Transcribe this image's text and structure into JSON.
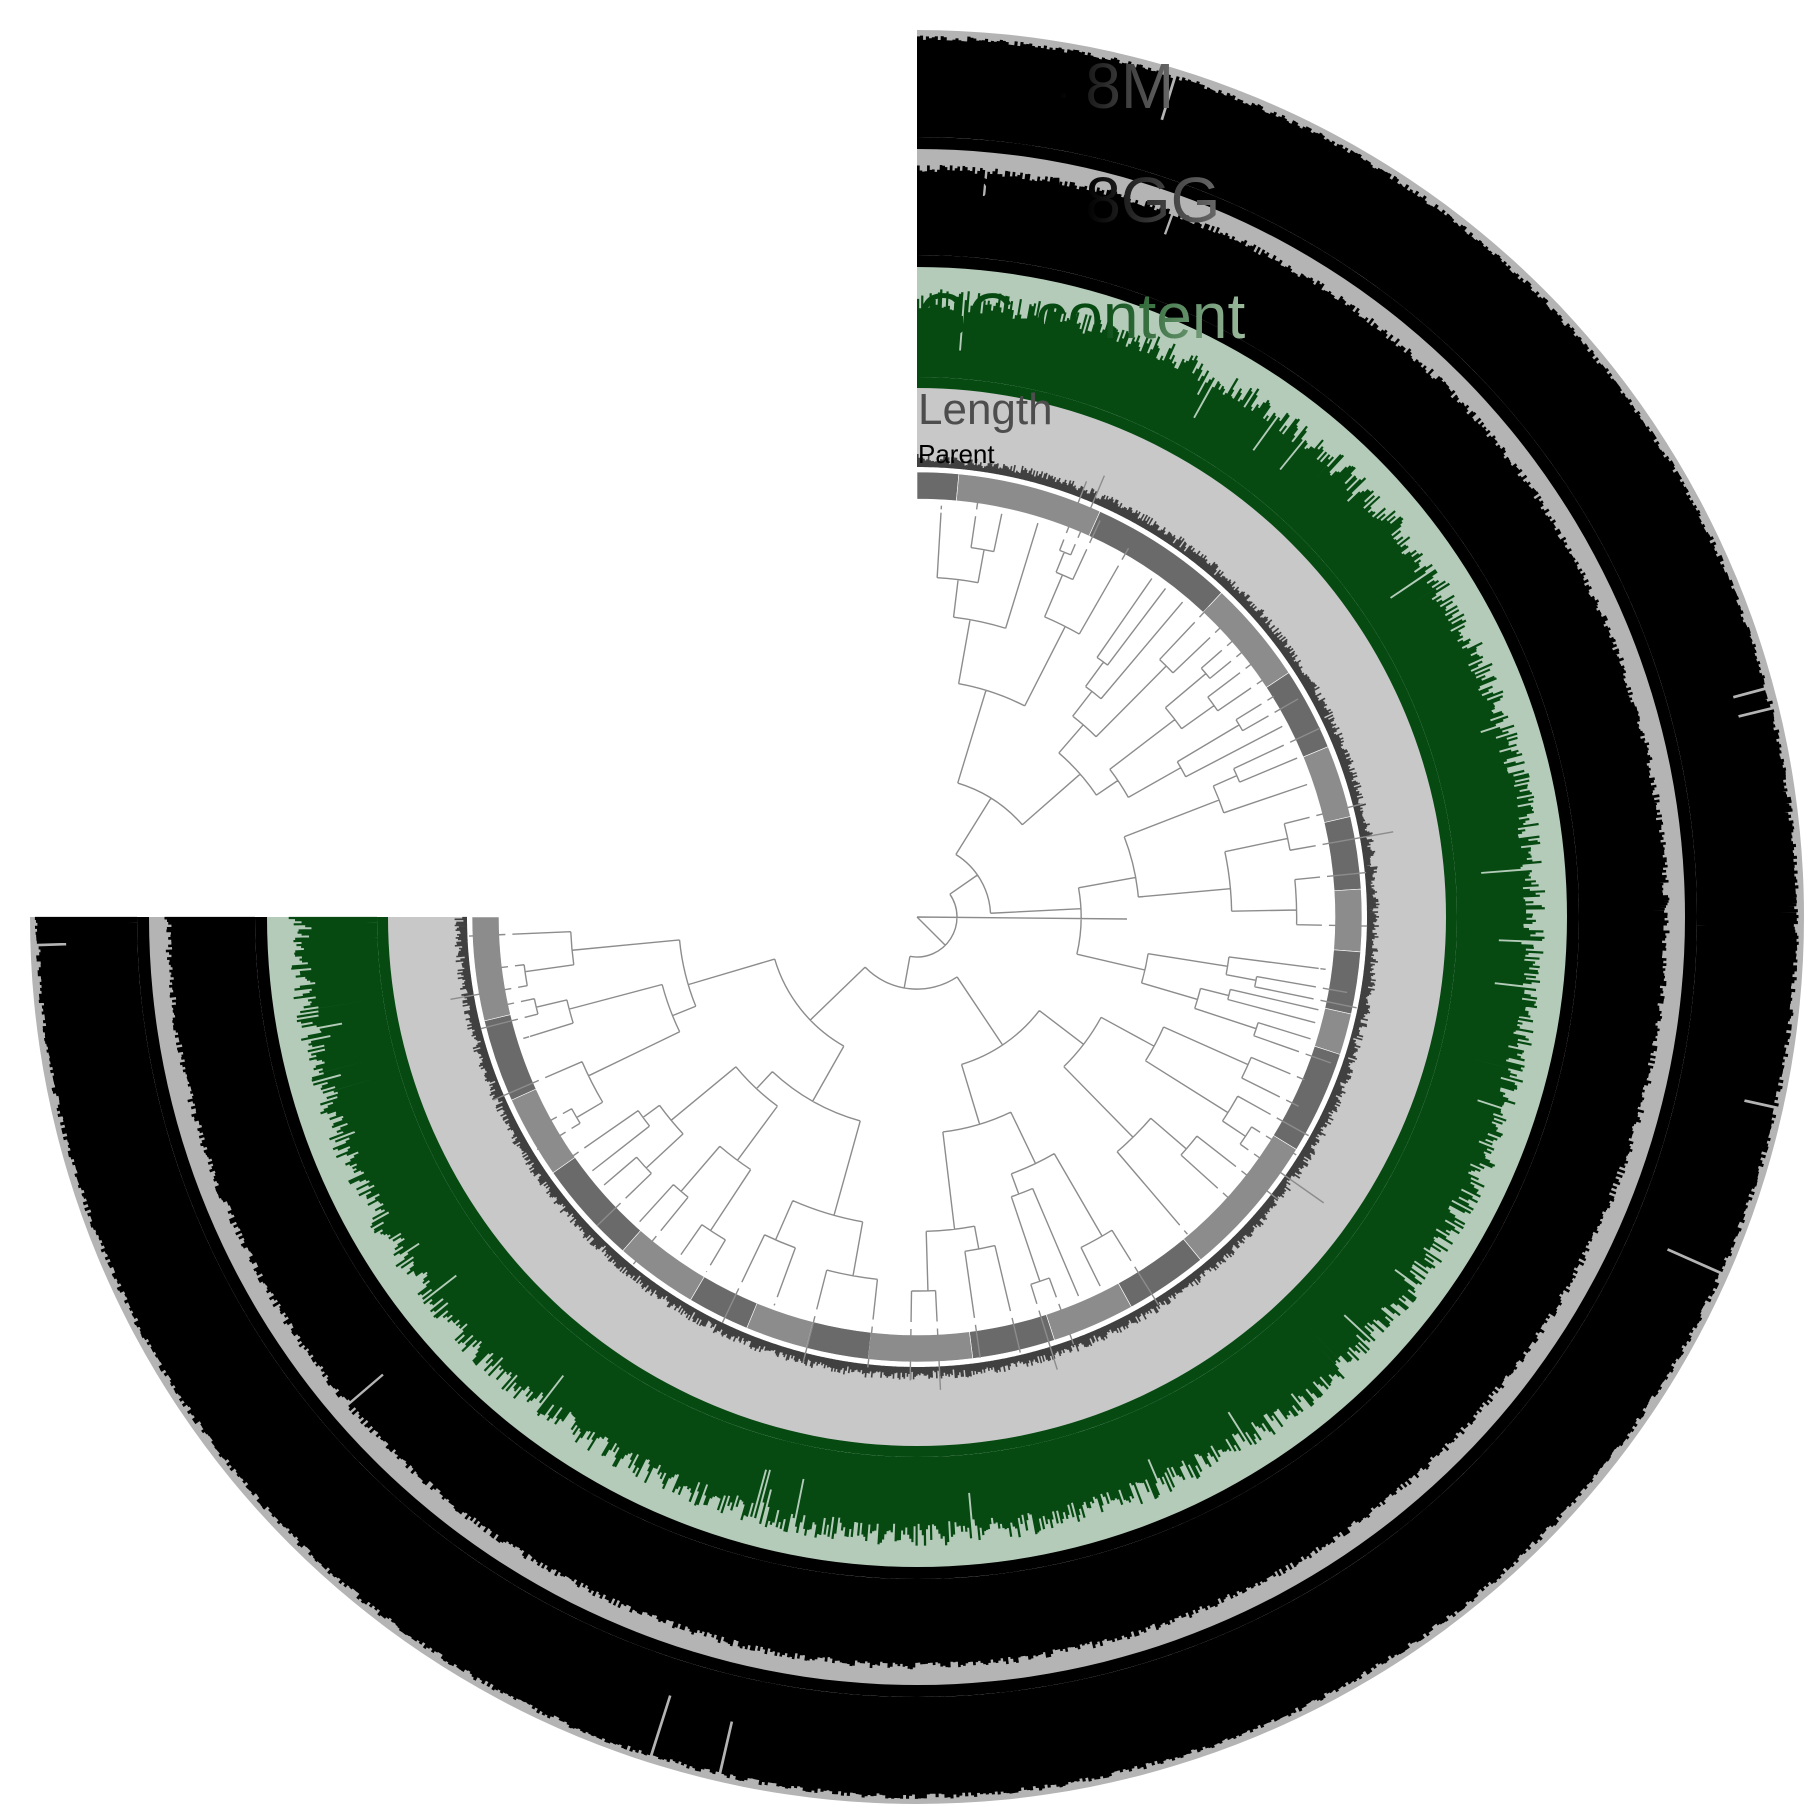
{
  "layers": [
    {
      "key": "p214_8m",
      "label": "P214 8M",
      "label_color": "#000000",
      "fill": "#000000",
      "background": "#b4b4b4"
    },
    {
      "key": "p214_8gg",
      "label": "P214 8GG",
      "label_color": "#000000",
      "fill": "#000000",
      "background": "#b4b4b4"
    },
    {
      "key": "gc_content",
      "label": "GC-content",
      "label_color": "#064a12",
      "fill": "#064a12",
      "background": "#b3cbb8"
    },
    {
      "key": "length",
      "label": "Length",
      "label_color": "#4d4d4d",
      "fill": "#404040",
      "background": "#c8c8c8"
    },
    {
      "key": "parent",
      "label": "Parent",
      "label_color": "#000000",
      "fill": "#6a6a6a",
      "background": "#8c8c8c"
    }
  ],
  "layout": {
    "arc_span_degrees": 270,
    "label_fade": "gradient toward white"
  },
  "colors": {
    "tree_line": "#8c8c8c",
    "separator": "#ffffff"
  }
}
